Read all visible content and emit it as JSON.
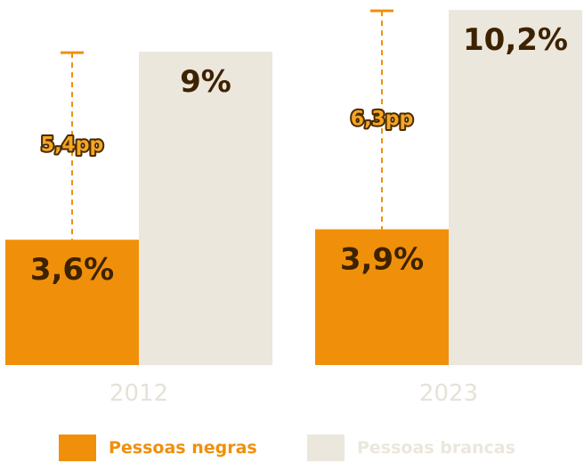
{
  "chart_data": {
    "type": "bar",
    "categories": [
      "2012",
      "2023"
    ],
    "series": [
      {
        "name": "Pessoas negras",
        "values": [
          3.6,
          3.9
        ],
        "labels": [
          "3,6%",
          "3,9%"
        ]
      },
      {
        "name": "Pessoas brancas",
        "values": [
          9,
          10.2
        ],
        "labels": [
          "9%",
          "10,2%"
        ]
      }
    ],
    "gap_annotations": [
      "5,4pp",
      "6,3pp"
    ],
    "colors": {
      "negras": "#f0900a",
      "brancas": "#ebe7dc",
      "gap_line": "#f0900a",
      "value_text": "#3d2200",
      "year_text": "#e6e2d8"
    },
    "legend_position": "bottom",
    "grid": false
  },
  "legend": {
    "items": [
      {
        "label": "Pessoas negras",
        "color": "#f0900a",
        "text_color": "#f0900a"
      },
      {
        "label": "Pessoas brancas",
        "color": "#ebe7dc",
        "text_color": "#ebe7dc"
      }
    ]
  }
}
